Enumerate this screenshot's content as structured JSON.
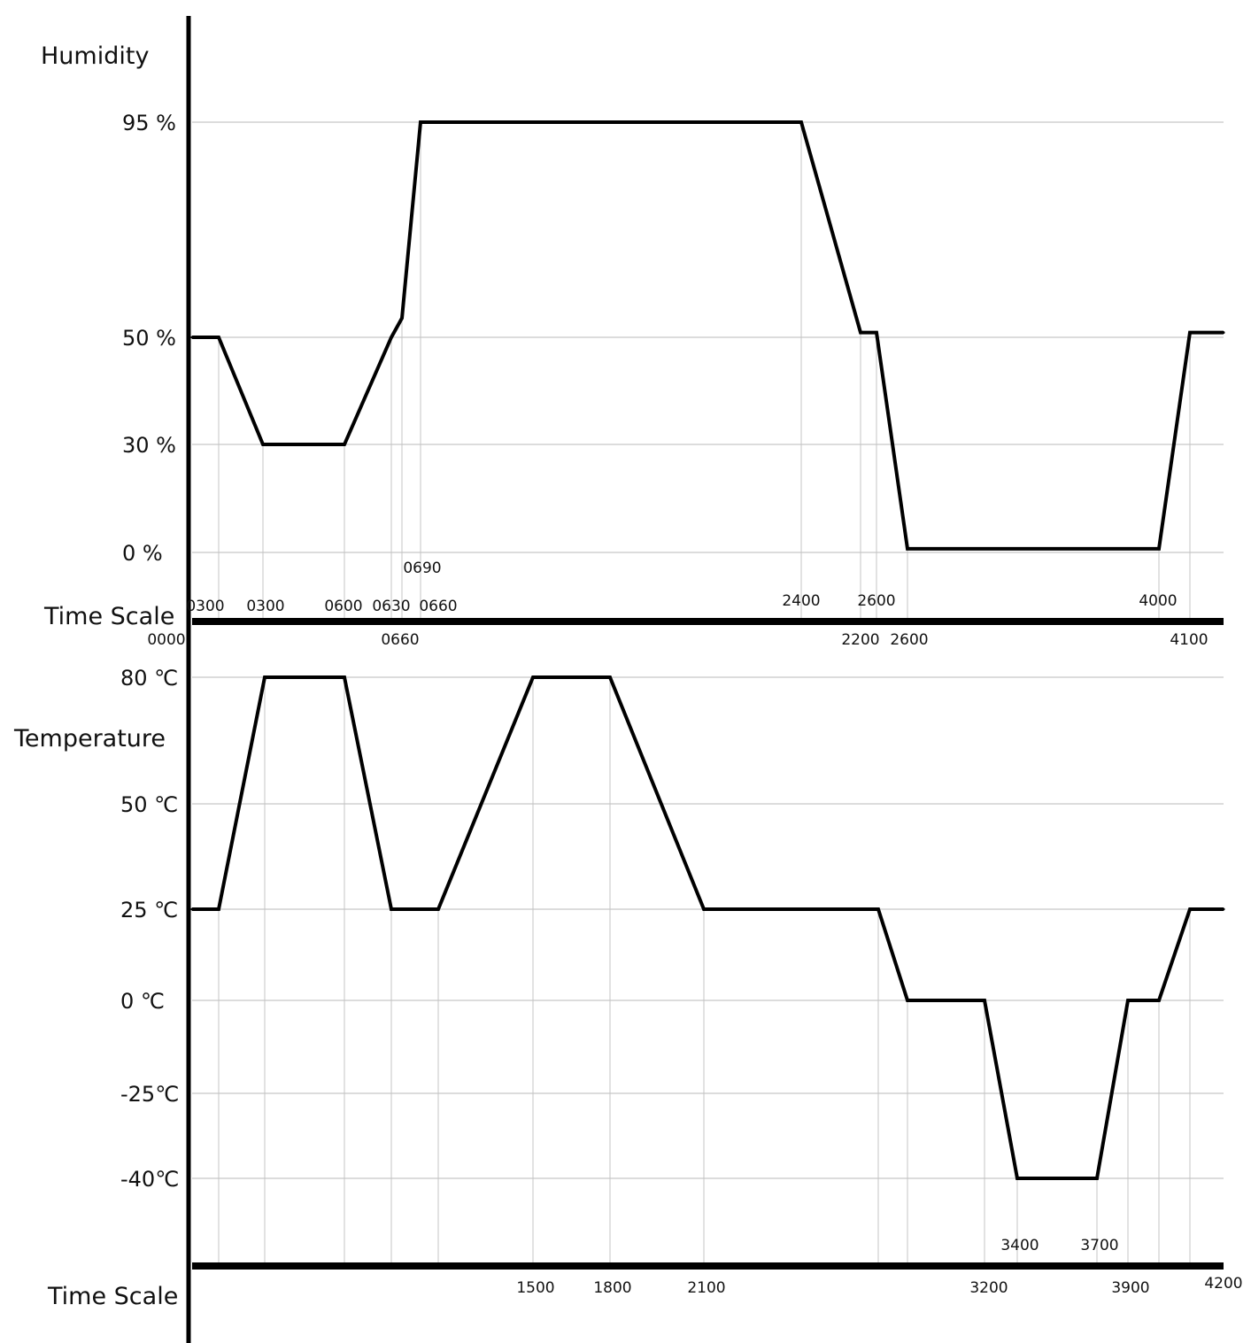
{
  "chart_data": [
    {
      "type": "line",
      "title": "",
      "ylabel": "Humidity",
      "xlabel": "Time Scale",
      "y_ticks": [
        {
          "value": 0,
          "label": "0 %"
        },
        {
          "value": 30,
          "label": "30 %"
        },
        {
          "value": 50,
          "label": "50 %"
        },
        {
          "value": 95,
          "label": "95 %"
        }
      ],
      "x_tick_labels_above_axis": [
        "0300",
        "0300",
        "0600",
        "0630",
        "0660",
        "0690",
        "2400",
        "2600",
        "4000"
      ],
      "x_tick_labels_below_axis": [
        "0000",
        "0660",
        "2200",
        "2600",
        "4100"
      ],
      "grid": true,
      "series": [
        {
          "profile": [
            {
              "t": 0,
              "v": 50
            },
            {
              "t": 30,
              "v": 50
            },
            {
              "t": 80,
              "v": 30
            },
            {
              "t": 172,
              "v": 30
            },
            {
              "t": 225,
              "v": 50
            },
            {
              "t": 237,
              "v": 54
            },
            {
              "t": 258,
              "v": 95
            },
            {
              "t": 688,
              "v": 95
            },
            {
              "t": 755,
              "v": 51
            },
            {
              "t": 773,
              "v": 51
            },
            {
              "t": 808,
              "v": 1
            },
            {
              "t": 1092,
              "v": 1
            },
            {
              "t": 1127,
              "v": 51
            },
            {
              "t": 1165,
              "v": 51
            }
          ]
        }
      ]
    },
    {
      "type": "line",
      "title": "",
      "ylabel": "Temperature",
      "xlabel": "Time Scale",
      "y_ticks": [
        {
          "value": -40,
          "label": "-40℃"
        },
        {
          "value": -25,
          "label": "-25℃"
        },
        {
          "value": 0,
          "label": "0 ℃"
        },
        {
          "value": 25,
          "label": "25 ℃"
        },
        {
          "value": 50,
          "label": "50 ℃"
        },
        {
          "value": 80,
          "label": "80 ℃"
        }
      ],
      "x_tick_labels_above_axis": [
        "3400",
        "3700"
      ],
      "x_tick_labels_below_axis": [
        "1500",
        "1800",
        "2100",
        "3200",
        "3900",
        "4200"
      ],
      "grid": true,
      "series": [
        {
          "profile": [
            {
              "t": 0,
              "v": 25
            },
            {
              "t": 30,
              "v": 25
            },
            {
              "t": 82,
              "v": 80
            },
            {
              "t": 172,
              "v": 80
            },
            {
              "t": 225,
              "v": 25
            },
            {
              "t": 278,
              "v": 25
            },
            {
              "t": 385,
              "v": 80
            },
            {
              "t": 472,
              "v": 80
            },
            {
              "t": 578,
              "v": 25
            },
            {
              "t": 775,
              "v": 25
            },
            {
              "t": 808,
              "v": 0
            },
            {
              "t": 895,
              "v": 0
            },
            {
              "t": 932,
              "v": -40
            },
            {
              "t": 1022,
              "v": -40
            },
            {
              "t": 1057,
              "v": 0
            },
            {
              "t": 1092,
              "v": 0
            },
            {
              "t": 1127,
              "v": 25
            },
            {
              "t": 1165,
              "v": 25
            }
          ]
        }
      ]
    }
  ]
}
